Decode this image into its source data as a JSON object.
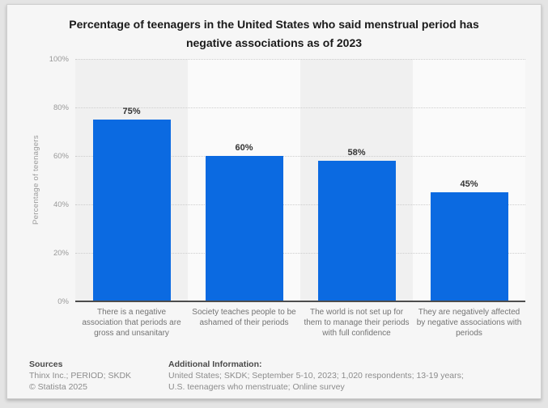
{
  "accent_color": "#0b6ae1",
  "colors": {
    "bar": "#0b6ae1",
    "band_dark": "#f0f0f0",
    "band_light": "#fafafa",
    "card_background": "#f6f6f6",
    "gridline": "#cdcdcd",
    "axis_line": "#4d4d4d",
    "title_text": "#1a1a1a",
    "muted_text": "#999999"
  },
  "chart_data": {
    "type": "bar",
    "title": "Percentage of teenagers in the United States who said menstrual period has negative associations as of 2023",
    "xlabel": "",
    "ylabel": "Percentage of teenagers",
    "ylim": [
      0,
      100
    ],
    "yticks": [
      0,
      20,
      40,
      60,
      80,
      100
    ],
    "ytick_labels": [
      "0%",
      "20%",
      "40%",
      "60%",
      "80%",
      "100%"
    ],
    "grid": "horizontal-dotted",
    "legend": "none",
    "categories": [
      "There is a negative association that periods are gross and unsanitary",
      "Society teaches people to be ashamed of their periods",
      "The world is not set up for them to manage their periods with full confidence",
      "They are negatively affected by negative associations with periods"
    ],
    "values": [
      75,
      60,
      58,
      45
    ],
    "value_labels": [
      "75%",
      "60%",
      "58%",
      "45%"
    ]
  },
  "footer": {
    "sources_heading": "Sources",
    "sources_line1": "Thinx Inc.; PERIOD; SKDK",
    "sources_line2": "© Statista 2025",
    "additional_heading": "Additional Information:",
    "additional_text": "United States; SKDK; September 5-10, 2023; 1,020 respondents; 13-19 years; U.S. teenagers who menstruate; Online survey"
  }
}
